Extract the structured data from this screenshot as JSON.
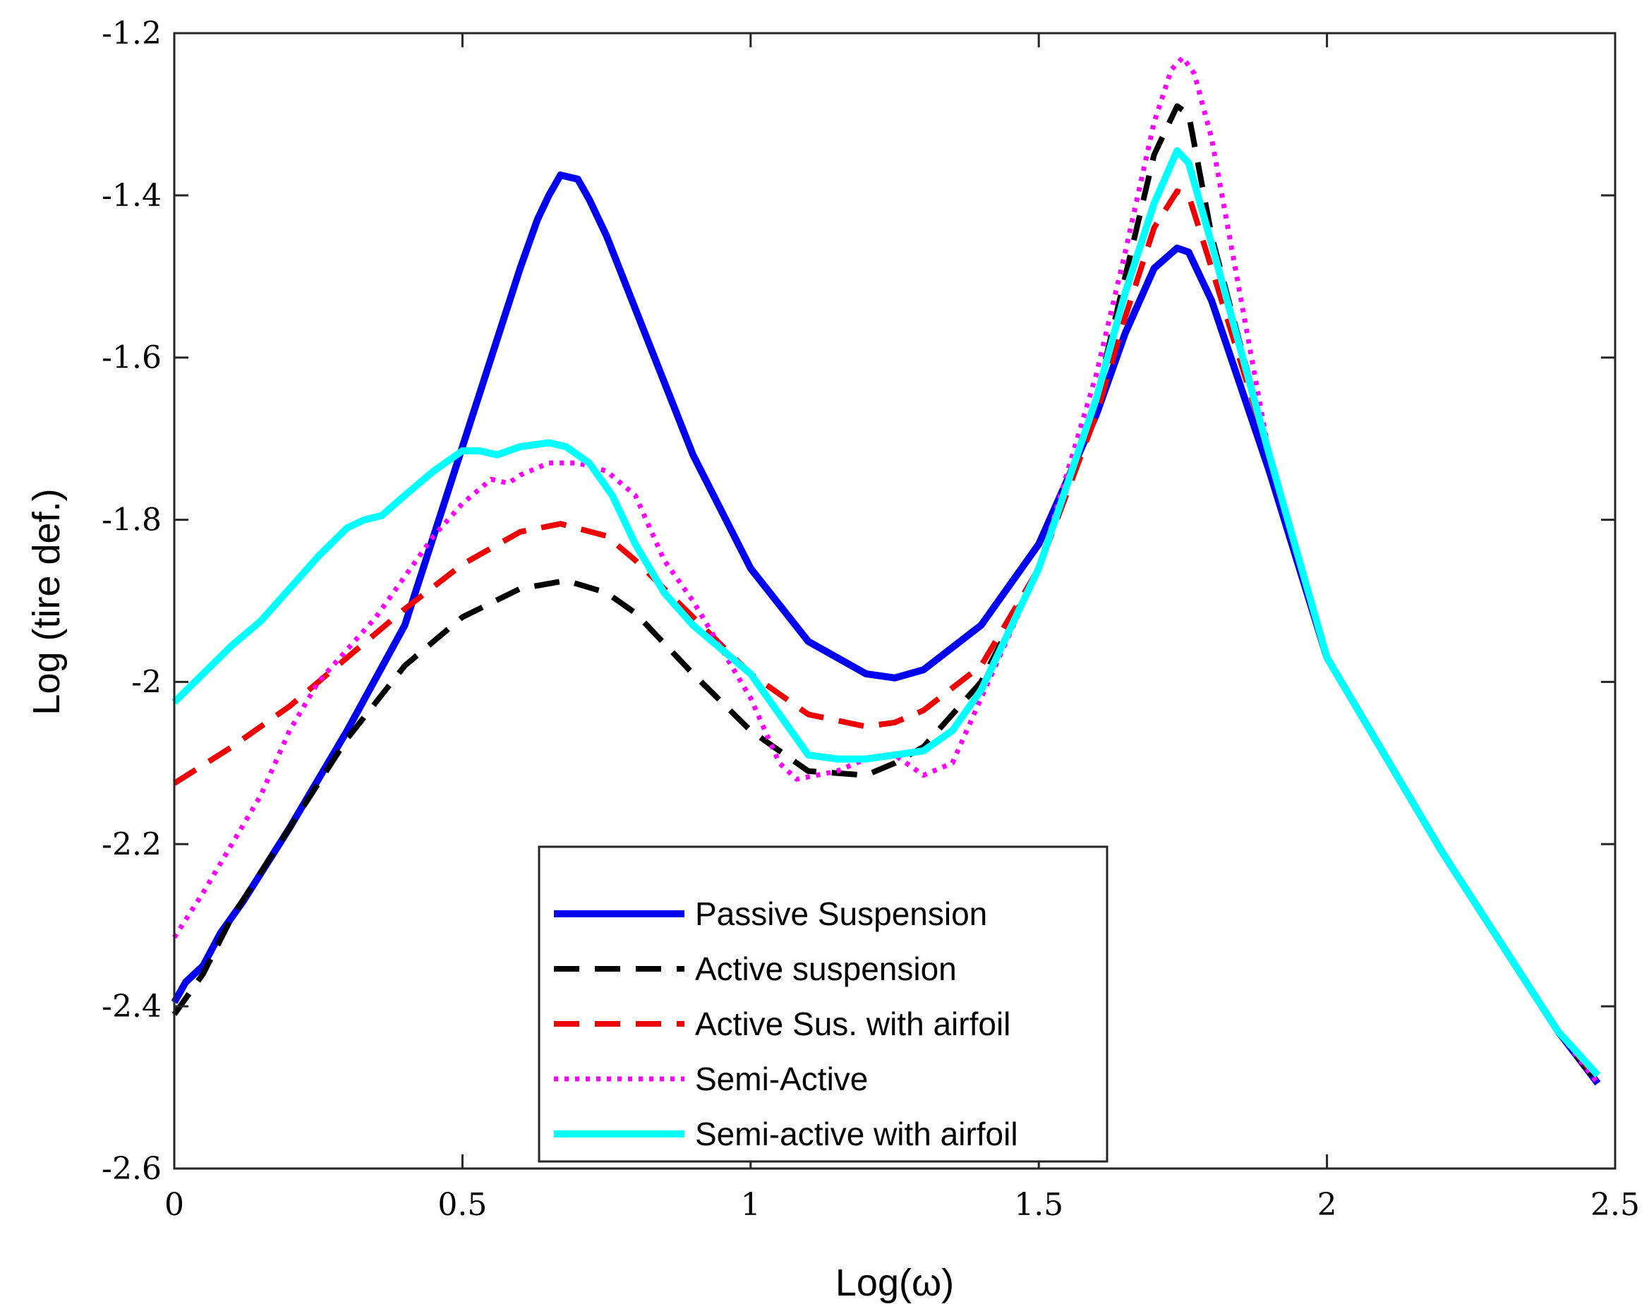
{
  "chart_data": {
    "type": "line",
    "title": "",
    "xlabel": "Log(ω)",
    "ylabel": "Log (tire def.)",
    "xlim": [
      0,
      2.5
    ],
    "ylim": [
      -2.6,
      -1.2
    ],
    "xticks": [
      0,
      0.5,
      1,
      1.5,
      2,
      2.5
    ],
    "xtick_labels": [
      "0",
      "0.5",
      "1",
      "1.5",
      "2",
      "2.5"
    ],
    "yticks": [
      -2.6,
      -2.4,
      -2.2,
      -2.0,
      -1.8,
      -1.6,
      -1.4,
      -1.2
    ],
    "ytick_labels": [
      "-2.6",
      "-2.4",
      "-2.2",
      "-2",
      "-1.8",
      "-1.6",
      "-1.4",
      "-1.2"
    ],
    "grid": false,
    "legend_position": "bottom-center",
    "series": [
      {
        "name": "Passive Suspension",
        "color": "#0000ee",
        "style": "solid",
        "x": [
          0,
          0.02,
          0.05,
          0.08,
          0.12,
          0.2,
          0.3,
          0.4,
          0.5,
          0.55,
          0.6,
          0.63,
          0.65,
          0.67,
          0.7,
          0.72,
          0.75,
          0.8,
          0.9,
          1.0,
          1.1,
          1.2,
          1.25,
          1.3,
          1.4,
          1.5,
          1.6,
          1.65,
          1.7,
          1.74,
          1.76,
          1.8,
          1.9,
          2.0,
          2.2,
          2.4,
          2.47
        ],
        "y": [
          -2.395,
          -2.37,
          -2.35,
          -2.31,
          -2.27,
          -2.18,
          -2.06,
          -1.93,
          -1.71,
          -1.6,
          -1.49,
          -1.43,
          -1.4,
          -1.375,
          -1.38,
          -1.405,
          -1.45,
          -1.54,
          -1.72,
          -1.86,
          -1.95,
          -1.99,
          -1.995,
          -1.985,
          -1.93,
          -1.83,
          -1.67,
          -1.57,
          -1.49,
          -1.465,
          -1.47,
          -1.53,
          -1.74,
          -1.97,
          -2.21,
          -2.43,
          -2.495
        ]
      },
      {
        "name": "Active suspension",
        "color": "#000000",
        "style": "dashed",
        "x": [
          0,
          0.05,
          0.1,
          0.2,
          0.3,
          0.4,
          0.5,
          0.6,
          0.68,
          0.75,
          0.8,
          0.9,
          1.0,
          1.1,
          1.2,
          1.25,
          1.3,
          1.4,
          1.5,
          1.6,
          1.65,
          1.7,
          1.74,
          1.76,
          1.8,
          1.9,
          2.0,
          2.2,
          2.4,
          2.47
        ],
        "y": [
          -2.41,
          -2.36,
          -2.29,
          -2.18,
          -2.07,
          -1.98,
          -1.92,
          -1.885,
          -1.875,
          -1.89,
          -1.915,
          -1.99,
          -2.06,
          -2.11,
          -2.115,
          -2.1,
          -2.08,
          -2.0,
          -1.86,
          -1.65,
          -1.5,
          -1.35,
          -1.29,
          -1.3,
          -1.45,
          -1.72,
          -1.97,
          -2.21,
          -2.43,
          -2.495
        ]
      },
      {
        "name": "Active Sus. with airfoil",
        "color": "#ee0000",
        "style": "dashed",
        "x": [
          0,
          0.1,
          0.2,
          0.3,
          0.4,
          0.5,
          0.6,
          0.67,
          0.75,
          0.8,
          0.9,
          1.0,
          1.1,
          1.2,
          1.25,
          1.3,
          1.4,
          1.5,
          1.6,
          1.65,
          1.7,
          1.74,
          1.76,
          1.8,
          1.9,
          2.0,
          2.2,
          2.4,
          2.47
        ],
        "y": [
          -2.125,
          -2.08,
          -2.03,
          -1.97,
          -1.91,
          -1.855,
          -1.815,
          -1.805,
          -1.82,
          -1.85,
          -1.92,
          -1.99,
          -2.04,
          -2.055,
          -2.05,
          -2.035,
          -1.98,
          -1.86,
          -1.67,
          -1.55,
          -1.44,
          -1.395,
          -1.4,
          -1.49,
          -1.72,
          -1.97,
          -2.21,
          -2.43,
          -2.49
        ]
      },
      {
        "name": "Semi-Active",
        "color": "#ff00ff",
        "style": "dotted",
        "x": [
          0,
          0.05,
          0.1,
          0.15,
          0.2,
          0.25,
          0.3,
          0.35,
          0.4,
          0.45,
          0.5,
          0.55,
          0.58,
          0.6,
          0.65,
          0.7,
          0.75,
          0.8,
          0.85,
          0.9,
          0.95,
          1.0,
          1.05,
          1.08,
          1.15,
          1.2,
          1.25,
          1.3,
          1.35,
          1.4,
          1.5,
          1.6,
          1.65,
          1.7,
          1.73,
          1.75,
          1.77,
          1.8,
          1.9,
          2.0,
          2.2,
          2.4,
          2.47
        ],
        "y": [
          -2.315,
          -2.26,
          -2.2,
          -2.14,
          -2.06,
          -2.0,
          -1.96,
          -1.92,
          -1.87,
          -1.82,
          -1.78,
          -1.75,
          -1.755,
          -1.745,
          -1.73,
          -1.73,
          -1.74,
          -1.77,
          -1.85,
          -1.9,
          -1.96,
          -2.02,
          -2.1,
          -2.12,
          -2.11,
          -2.095,
          -2.09,
          -2.115,
          -2.1,
          -2.02,
          -1.86,
          -1.62,
          -1.47,
          -1.31,
          -1.245,
          -1.23,
          -1.25,
          -1.33,
          -1.72,
          -1.97,
          -2.21,
          -2.43,
          -2.495
        ]
      },
      {
        "name": "Semi-active with airfoil",
        "color": "#00ffff",
        "style": "solid",
        "x": [
          0,
          0.05,
          0.1,
          0.15,
          0.2,
          0.25,
          0.3,
          0.33,
          0.36,
          0.4,
          0.45,
          0.5,
          0.53,
          0.56,
          0.58,
          0.6,
          0.65,
          0.68,
          0.72,
          0.76,
          0.8,
          0.85,
          0.9,
          0.95,
          1.0,
          1.05,
          1.1,
          1.15,
          1.2,
          1.25,
          1.3,
          1.35,
          1.4,
          1.5,
          1.6,
          1.65,
          1.7,
          1.74,
          1.76,
          1.8,
          1.9,
          2.0,
          2.2,
          2.4,
          2.47
        ],
        "y": [
          -2.025,
          -1.99,
          -1.955,
          -1.925,
          -1.885,
          -1.845,
          -1.81,
          -1.8,
          -1.795,
          -1.77,
          -1.74,
          -1.715,
          -1.715,
          -1.72,
          -1.715,
          -1.71,
          -1.705,
          -1.71,
          -1.73,
          -1.77,
          -1.83,
          -1.89,
          -1.93,
          -1.96,
          -1.99,
          -2.04,
          -2.09,
          -2.095,
          -2.095,
          -2.09,
          -2.085,
          -2.06,
          -2.01,
          -1.86,
          -1.65,
          -1.52,
          -1.41,
          -1.345,
          -1.36,
          -1.46,
          -1.72,
          -1.97,
          -2.21,
          -2.43,
          -2.485
        ]
      }
    ]
  }
}
